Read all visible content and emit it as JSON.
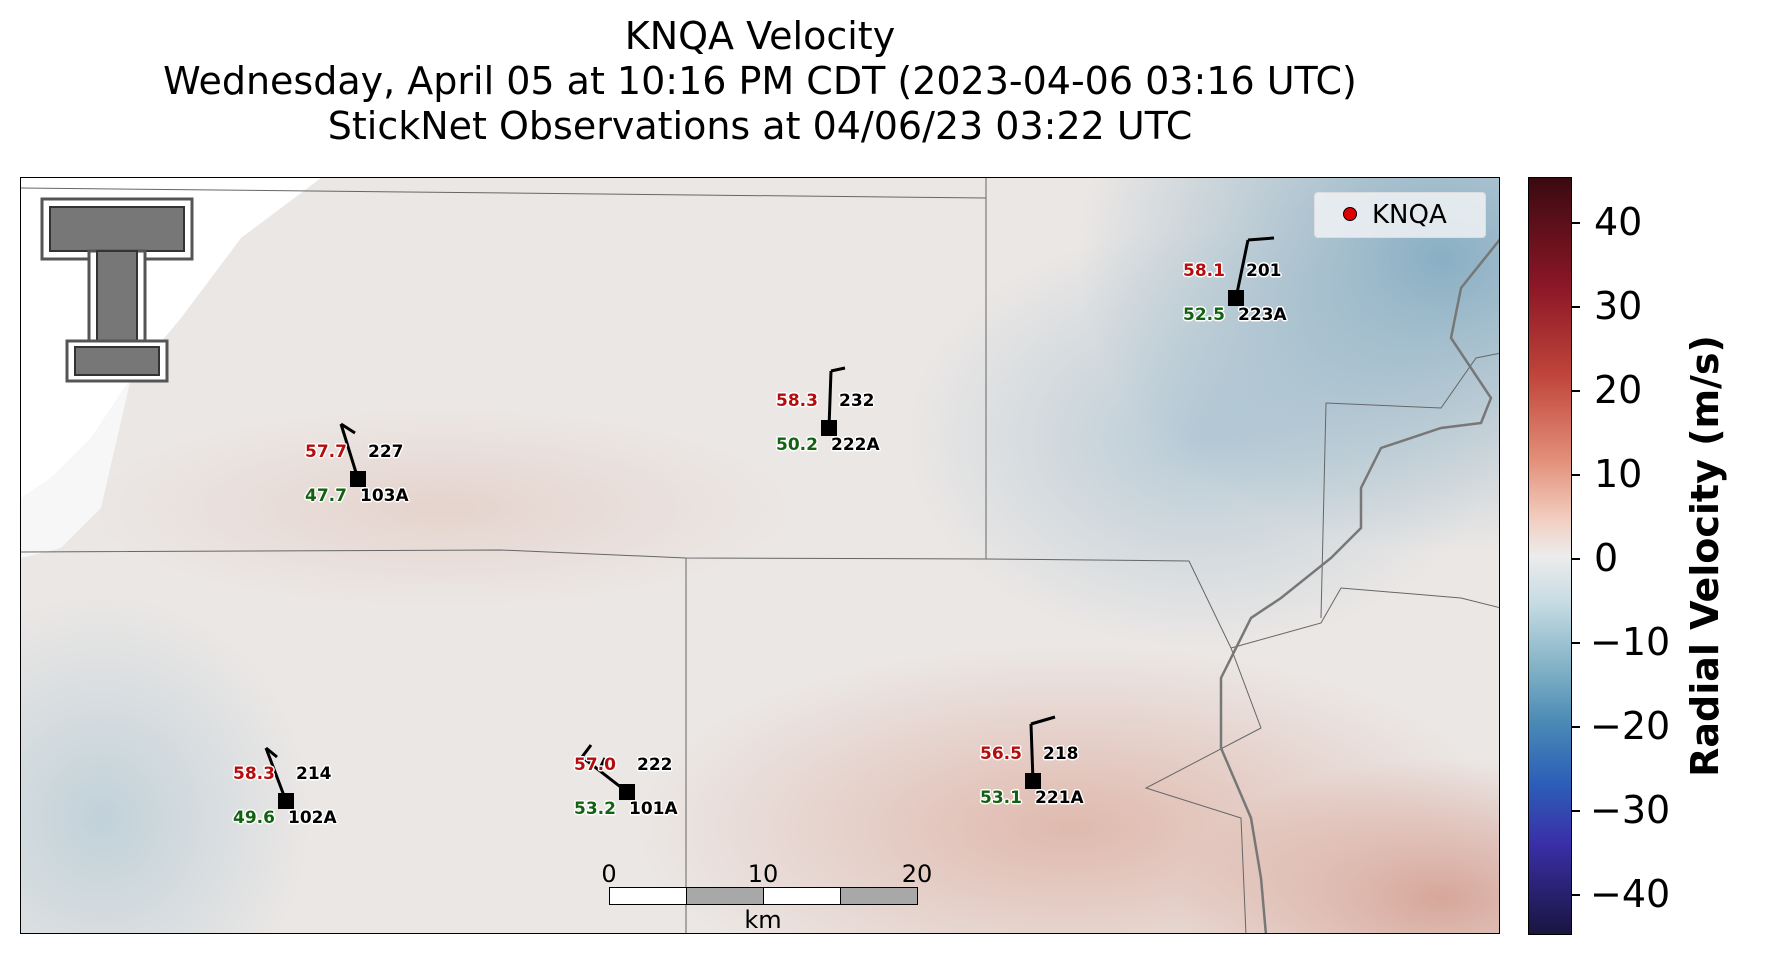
{
  "title": {
    "line1": "KNQA Velocity",
    "line2": "Wednesday, April 05 at 10:16 PM CDT (2023-04-06 03:16 UTC)",
    "line3": "StickNet Observations at 04/06/23 03:22 UTC"
  },
  "legend": {
    "label": "KNQA",
    "marker_color": "#e00000"
  },
  "stations": [
    {
      "temp": "58.1",
      "dew": "52.5",
      "id": "201",
      "alt_id": "223A"
    },
    {
      "temp": "58.3",
      "dew": "50.2",
      "id": "232",
      "alt_id": "222A"
    },
    {
      "temp": "57.7",
      "dew": "47.7",
      "id": "227",
      "alt_id": "103A"
    },
    {
      "temp": "58.3",
      "dew": "49.6",
      "id": "214",
      "alt_id": "102A"
    },
    {
      "temp": "57.0",
      "dew": "53.2",
      "id": "222",
      "alt_id": "101A"
    },
    {
      "temp": "56.5",
      "dew": "53.1",
      "id": "218",
      "alt_id": "221A"
    }
  ],
  "scalebar": {
    "ticks": [
      "0",
      "10",
      "20"
    ],
    "unit": "km"
  },
  "colorbar": {
    "label": "Radial Velocity (m/s)",
    "ticks": [
      "40",
      "30",
      "20",
      "10",
      "0",
      "−10",
      "−20",
      "−30",
      "−40"
    ],
    "range": [
      -45,
      45
    ],
    "colors": {
      "positive": "#c0443a",
      "zero": "#ececec",
      "negative": "#4a8ab5"
    }
  },
  "temp_color": "#b50d0d",
  "dew_color": "#136212"
}
